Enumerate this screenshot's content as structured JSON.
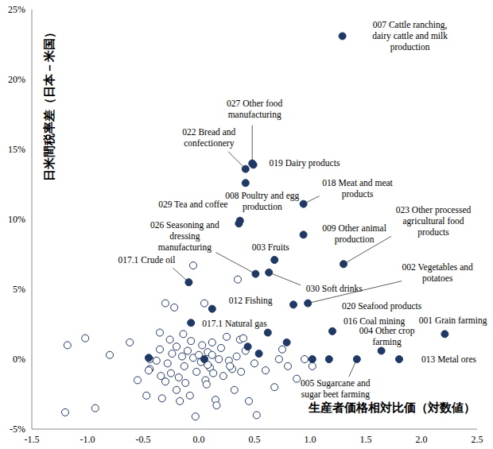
{
  "chart_data": {
    "type": "scatter",
    "x_label": "生産者価格相対比価（対数値）",
    "y_label": "日米間税率差（日本－米国）",
    "xlim": [
      -1.5,
      2.5
    ],
    "xticks": [
      -1.5,
      {
        "value": -1,
        "label": "-1.0"
      },
      -0.5,
      {
        "value": 0,
        "label": "0.0"
      },
      0.5,
      {
        "value": 1,
        "label": "1.0"
      },
      1.5,
      {
        "value": 2,
        "label": "2.0"
      },
      2.5
    ],
    "ylim": [
      -5,
      25
    ],
    "yticks": [
      {
        "value": -5,
        "label": "-5%"
      },
      {
        "value": 0,
        "label": "0%"
      },
      {
        "value": 5,
        "label": "5%"
      },
      {
        "value": 10,
        "label": "10%"
      },
      {
        "value": 15,
        "label": "15%"
      },
      {
        "value": 20,
        "label": "20%"
      },
      {
        "value": 25,
        "label": "25%"
      }
    ],
    "grid": false,
    "series": [
      {
        "marker": "circle_open",
        "color": "#1f3864",
        "x": [
          -1.2,
          -1.18,
          -1.02,
          -0.93,
          -0.8,
          -0.62,
          -0.47,
          -0.44,
          -0.44,
          -0.35,
          -0.35,
          -0.34,
          -0.33,
          -0.3,
          -0.3,
          -0.28,
          -0.26,
          -0.25,
          -0.24,
          -0.22,
          -0.2,
          -0.2,
          -0.18,
          -0.17,
          -0.15,
          -0.14,
          -0.13,
          -0.12,
          -0.1,
          -0.08,
          -0.07,
          -0.05,
          -0.05,
          -0.03,
          -0.02,
          0.0,
          0.02,
          0.03,
          0.05,
          0.06,
          0.07,
          0.08,
          0.1,
          0.12,
          0.13,
          0.15,
          0.16,
          0.18,
          0.2,
          0.22,
          0.25,
          0.27,
          0.3,
          0.32,
          0.34,
          0.35,
          0.37,
          0.38,
          0.4,
          0.42,
          0.45,
          0.5,
          0.52,
          0.6,
          0.68,
          0.72,
          0.75,
          0.8,
          0.88,
          0.95,
          1.02,
          -0.55,
          -0.45,
          -0.38,
          0.08,
          0.28,
          0.12
        ],
        "y": [
          -3.8,
          1.0,
          1.5,
          -3.5,
          0.3,
          1.2,
          -2.6,
          -0.7,
          0.0,
          1.9,
          0.7,
          -1.2,
          -2.8,
          4.0,
          -1.6,
          -0.3,
          1.4,
          -1.0,
          0.4,
          3.7,
          -2.2,
          0.9,
          -1.3,
          -3.0,
          0.2,
          1.8,
          -0.5,
          -1.7,
          0.6,
          -2.6,
          1.3,
          6.7,
          0.1,
          -4.1,
          -0.9,
          0.3,
          -0.2,
          1.0,
          4.0,
          -1.5,
          -1.8,
          0.5,
          -0.6,
          1.2,
          -1.0,
          -2.9,
          -3.3,
          0.0,
          0.8,
          -1.2,
          1.6,
          -0.1,
          -0.7,
          -2.2,
          0.2,
          5.7,
          1.4,
          -0.9,
          1.5,
          0.6,
          -3.0,
          -0.3,
          -4.0,
          -0.8,
          -2.0,
          0.0,
          0.7,
          -0.5,
          -1.4,
          0.0,
          -0.5,
          -1.5,
          -0.8,
          -0.1,
          -0.4,
          -0.5,
          0.3
        ]
      },
      {
        "marker": "circle_filled",
        "color": "#1f3864",
        "x": [
          1.29,
          0.48,
          0.42,
          0.49,
          0.42,
          0.94,
          0.36,
          0.51,
          0.68,
          0.94,
          1.3,
          0.63,
          0.98,
          0.85,
          -0.09,
          0.12,
          -0.07,
          1.2,
          2.21,
          1.64,
          1.42,
          1.8,
          0.37,
          -0.45,
          0.05,
          0.44,
          0.54,
          0.62,
          0.79,
          1.02,
          1.17
        ],
        "y": [
          23.1,
          14.0,
          13.6,
          13.9,
          12.6,
          11.1,
          9.7,
          6.1,
          7.1,
          8.9,
          6.8,
          6.2,
          4.0,
          3.9,
          5.5,
          3.6,
          2.6,
          2.0,
          1.8,
          0.6,
          0.0,
          0.0,
          9.9,
          0.1,
          0.0,
          0.9,
          0.4,
          1.9,
          1.2,
          0.0,
          0.0
        ],
        "labels": [
          "007 Cattle ranching,\ndairy cattle and milk\nproduction",
          "027 Other food\nmanufacturing",
          "022 Bread and\nconfectionery",
          "019 Dairy products",
          "008 Poultry and egg\nproduction",
          "018 Meat and meat\nproducts",
          "029 Tea and coffee",
          "026 Seasoning and\ndressing\nmanufacturing",
          "003 Fruits",
          "009 Other animal\nproduction",
          "023 Other processed\nagricultural food\nproducts",
          "030 Soft drinks",
          "002 Vegetables and\npotatoes",
          "020 Seafood products",
          "017.1 Crude oil",
          "012 Fishing",
          "017.1 Natural gas",
          "016 Coal mining",
          "001 Grain farming",
          "004 Other crop\nfarming",
          "005 Sugarcane and\nsugar beet farming",
          "013 Metal ores",
          null,
          null,
          null,
          null,
          null,
          null,
          null,
          null,
          null
        ]
      }
    ]
  }
}
